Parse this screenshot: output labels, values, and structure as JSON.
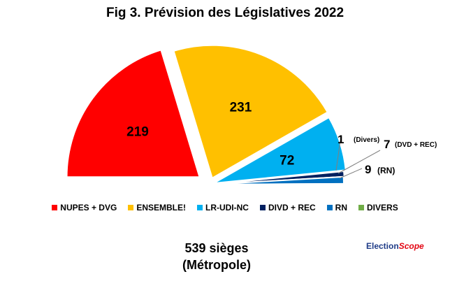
{
  "chart_data": {
    "type": "pie",
    "title": "Fig 3. Prévision des Législatives 2022",
    "series": [
      {
        "name": "NUPES + DVG",
        "value": 219,
        "color": "#ff0000"
      },
      {
        "name": "ENSEMBLE!",
        "value": 231,
        "color": "#ffc000"
      },
      {
        "name": "LR-UDI-NC",
        "value": 72,
        "color": "#00b0f0"
      },
      {
        "name": "DIVD + REC",
        "value": 7,
        "color": "#002060"
      },
      {
        "name": "RN",
        "value": 9,
        "color": "#0070c0"
      },
      {
        "name": "DIVERS",
        "value": 1,
        "color": "#70ad47"
      }
    ],
    "layout": "half-donut (hemicycle)",
    "legend_position": "bottom",
    "side_labels": {
      "divers_value": "1",
      "divers_text": "(Divers)",
      "dvd_value": "7",
      "dvd_text": "(DVD + REC)",
      "rn_value": "9",
      "rn_text": "(RN)"
    },
    "total_line1": "539 sièges",
    "total_line2": "(Métropole)"
  },
  "brand": {
    "part1": "Election",
    "part2": "Scope"
  }
}
